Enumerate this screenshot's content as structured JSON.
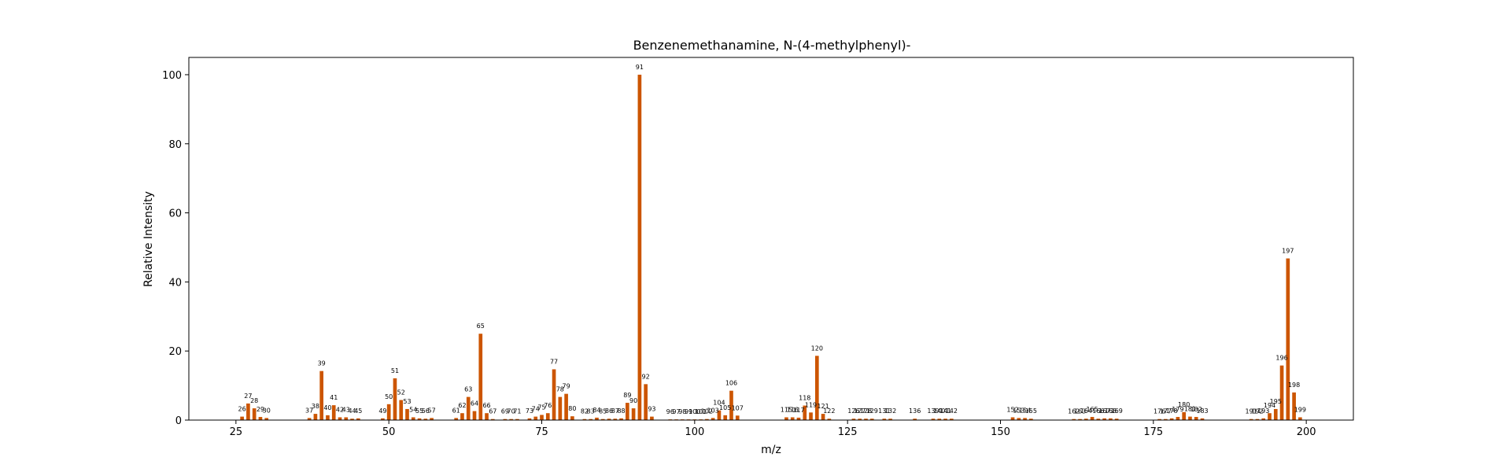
{
  "chart_data": {
    "type": "bar",
    "title": "Benzenemethanamine, N-(4-methylphenyl)-",
    "xlabel": "m/z",
    "ylabel": "Relative Intensity",
    "xlim": [
      17.3,
      207.7
    ],
    "ylim": [
      0,
      105
    ],
    "xticks": [
      25,
      50,
      75,
      100,
      125,
      150,
      175,
      200
    ],
    "yticks": [
      0,
      20,
      40,
      60,
      80,
      100
    ],
    "bar_color": "#cc5500",
    "grid": false,
    "x": [
      26,
      27,
      28,
      29,
      30,
      37,
      38,
      39,
      40,
      41,
      42,
      43,
      44,
      45,
      49,
      50,
      51,
      52,
      53,
      54,
      55,
      56,
      57,
      61,
      62,
      63,
      64,
      65,
      66,
      67,
      69,
      70,
      71,
      73,
      74,
      75,
      76,
      77,
      78,
      79,
      80,
      82,
      83,
      84,
      85,
      86,
      87,
      88,
      89,
      90,
      91,
      92,
      93,
      96,
      97,
      98,
      99,
      100,
      101,
      102,
      103,
      104,
      105,
      106,
      107,
      115,
      116,
      117,
      118,
      119,
      120,
      121,
      122,
      126,
      127,
      128,
      129,
      131,
      132,
      136,
      139,
      140,
      141,
      142,
      152,
      153,
      154,
      155,
      162,
      163,
      164,
      165,
      166,
      167,
      168,
      169,
      176,
      177,
      178,
      179,
      180,
      181,
      182,
      183,
      191,
      192,
      193,
      194,
      195,
      196,
      197,
      198,
      199
    ],
    "values": [
      1.0,
      4.8,
      3.4,
      0.9,
      0.6,
      0.6,
      1.8,
      14.2,
      1.4,
      4.3,
      0.8,
      0.8,
      0.4,
      0.5,
      0.5,
      4.6,
      12.1,
      5.8,
      3.2,
      0.8,
      0.5,
      0.4,
      0.6,
      0.6,
      2.0,
      6.7,
      2.6,
      25.0,
      2.0,
      0.3,
      0.3,
      0.3,
      0.3,
      0.5,
      1.0,
      1.5,
      2.0,
      14.7,
      6.7,
      7.6,
      1.1,
      0.3,
      0.3,
      0.7,
      0.3,
      0.4,
      0.4,
      0.5,
      5.0,
      3.4,
      100.0,
      10.4,
      1.0,
      0.2,
      0.2,
      0.2,
      0.2,
      0.2,
      0.2,
      0.3,
      0.6,
      2.8,
      1.4,
      8.5,
      1.3,
      0.8,
      0.8,
      0.7,
      4.2,
      2.2,
      18.6,
      1.8,
      0.4,
      0.4,
      0.4,
      0.4,
      0.4,
      0.4,
      0.4,
      0.4,
      0.4,
      0.4,
      0.4,
      0.4,
      0.8,
      0.6,
      0.6,
      0.4,
      0.3,
      0.3,
      0.4,
      0.9,
      0.4,
      0.5,
      0.5,
      0.4,
      0.3,
      0.3,
      0.5,
      0.9,
      2.3,
      1.0,
      0.9,
      0.5,
      0.3,
      0.3,
      0.5,
      2.0,
      3.2,
      15.8,
      46.8,
      8.0,
      0.8
    ],
    "labels": [
      "26",
      "27",
      "28",
      "29",
      "30",
      "37",
      "38",
      "39",
      "40",
      "41",
      "42",
      "43",
      "44",
      "45",
      "49",
      "50",
      "51",
      "52",
      "53",
      "54",
      "55",
      "56",
      "57",
      "61",
      "62",
      "63",
      "64",
      "65",
      "66",
      "67",
      "69",
      "70",
      "71",
      "73",
      "74",
      "75",
      "76",
      "77",
      "78",
      "79",
      "80",
      "82",
      "83",
      "84",
      "85",
      "86",
      "87",
      "88",
      "89",
      "90",
      "91",
      "92",
      "93",
      "96",
      "97",
      "98",
      "99",
      "100",
      "101",
      "102",
      "103",
      "104",
      "105",
      "106",
      "107",
      "115",
      "116",
      "117",
      "118",
      "119",
      "120",
      "121",
      "122",
      "126",
      "127",
      "128",
      "129",
      "131",
      "132",
      "136",
      "139",
      "140",
      "141",
      "142",
      "152",
      "153",
      "154",
      "155",
      "162",
      "163",
      "164",
      "165",
      "166",
      "167",
      "168",
      "169",
      "176",
      "177",
      "178",
      "179",
      "180",
      "181",
      "182",
      "183",
      "191",
      "192",
      "193",
      "194",
      "195",
      "196",
      "197",
      "198",
      "199"
    ]
  }
}
